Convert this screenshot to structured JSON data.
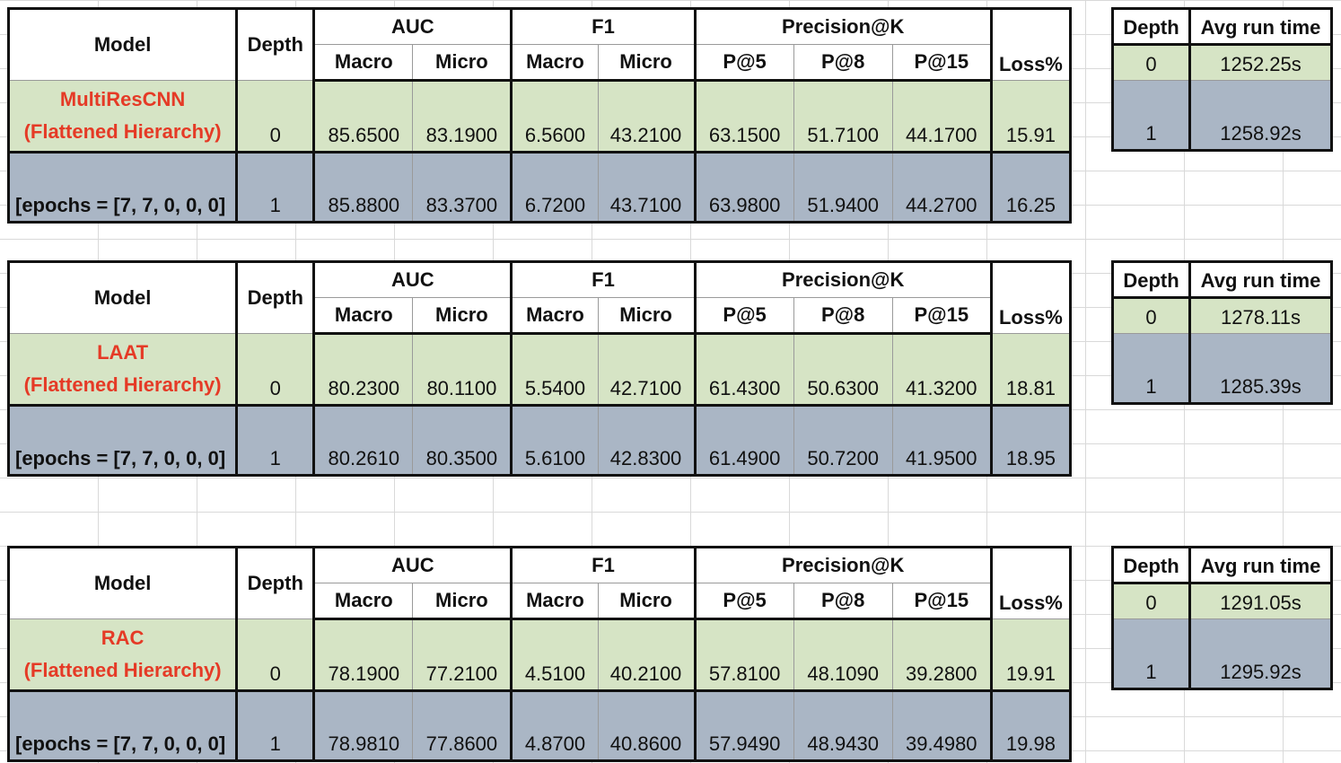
{
  "headers": {
    "model": "Model",
    "depth": "Depth",
    "auc": "AUC",
    "f1": "F1",
    "precision": "Precision@K",
    "macro": "Macro",
    "micro": "Micro",
    "p5": "P@5",
    "p8": "P@8",
    "p15": "P@15",
    "loss": "Loss%",
    "avg_run_time": "Avg run time"
  },
  "blocks": [
    {
      "model_name": "MultiResCNN",
      "model_sub": "(Flattened Hierarchy)",
      "epochs": "[epochs =  [7, 7, 0, 0, 0]",
      "rows": [
        {
          "depth": "0",
          "auc_macro": "85.6500",
          "auc_micro": "83.1900",
          "f1_macro": "6.5600",
          "f1_micro": "43.2100",
          "p5": "63.1500",
          "p8": "51.7100",
          "p15": "44.1700",
          "loss": "15.91"
        },
        {
          "depth": "1",
          "auc_macro": "85.8800",
          "auc_micro": "83.3700",
          "f1_macro": "6.7200",
          "f1_micro": "43.7100",
          "p5": "63.9800",
          "p8": "51.9400",
          "p15": "44.2700",
          "loss": "16.25"
        }
      ],
      "runtime": [
        {
          "depth": "0",
          "time": "1252.25s"
        },
        {
          "depth": "1",
          "time": "1258.92s"
        }
      ]
    },
    {
      "model_name": "LAAT",
      "model_sub": "(Flattened Hierarchy)",
      "epochs": "[epochs =  [7, 7, 0, 0, 0]",
      "rows": [
        {
          "depth": "0",
          "auc_macro": "80.2300",
          "auc_micro": "80.1100",
          "f1_macro": "5.5400",
          "f1_micro": "42.7100",
          "p5": "61.4300",
          "p8": "50.6300",
          "p15": "41.3200",
          "loss": "18.81"
        },
        {
          "depth": "1",
          "auc_macro": "80.2610",
          "auc_micro": "80.3500",
          "f1_macro": "5.6100",
          "f1_micro": "42.8300",
          "p5": "61.4900",
          "p8": "50.7200",
          "p15": "41.9500",
          "loss": "18.95"
        }
      ],
      "runtime": [
        {
          "depth": "0",
          "time": "1278.11s"
        },
        {
          "depth": "1",
          "time": "1285.39s"
        }
      ]
    },
    {
      "model_name": "RAC",
      "model_sub": "(Flattened Hierarchy)",
      "epochs": "[epochs =  [7, 7, 0, 0, 0]",
      "rows": [
        {
          "depth": "0",
          "auc_macro": "78.1900",
          "auc_micro": "77.2100",
          "f1_macro": "4.5100",
          "f1_micro": "40.2100",
          "p5": "57.8100",
          "p8": "48.1090",
          "p15": "39.2800",
          "loss": "19.91"
        },
        {
          "depth": "1",
          "auc_macro": "78.9810",
          "auc_micro": "77.8600",
          "f1_macro": "4.8700",
          "f1_micro": "40.8600",
          "p5": "57.9490",
          "p8": "48.9430",
          "p15": "39.4980",
          "loss": "19.98"
        }
      ],
      "runtime": [
        {
          "depth": "0",
          "time": "1291.05s"
        },
        {
          "depth": "1",
          "time": "1295.92s"
        }
      ]
    }
  ]
}
